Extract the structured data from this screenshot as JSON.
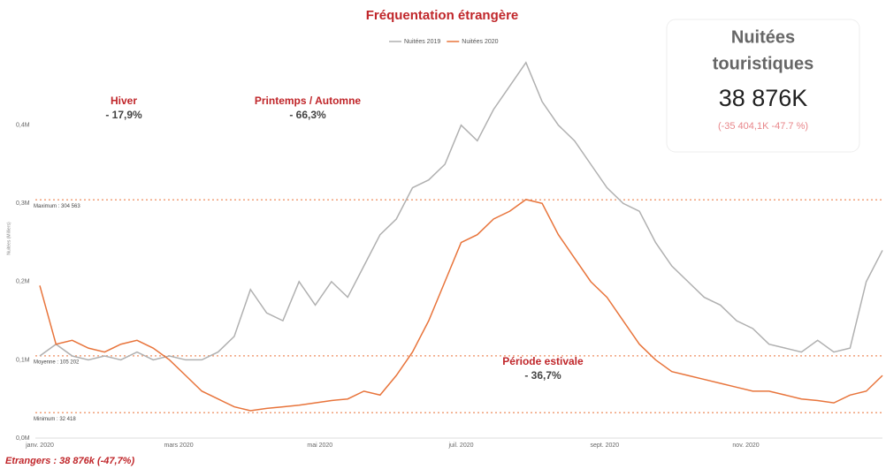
{
  "chart_data": {
    "type": "line",
    "title": "Fréquentation étrangère",
    "y_axis_label": "Nuitées (Milliers)",
    "x": [
      1,
      8,
      15,
      22,
      29,
      36,
      43,
      50,
      57,
      64,
      71,
      78,
      85,
      92,
      99,
      106,
      113,
      120,
      127,
      134,
      141,
      148,
      155,
      162,
      169,
      176,
      183,
      190,
      197,
      204,
      211,
      218,
      225,
      232,
      239,
      246,
      253,
      260,
      267,
      274,
      281,
      288,
      295,
      302,
      309,
      316,
      323,
      330,
      337,
      344,
      351,
      358,
      365
    ],
    "xlim": [
      1,
      365
    ],
    "xticks": [
      {
        "value": 1,
        "label": "janv. 2020"
      },
      {
        "value": 61,
        "label": "mars 2020"
      },
      {
        "value": 122,
        "label": "mai 2020"
      },
      {
        "value": 183,
        "label": "juil. 2020"
      },
      {
        "value": 245,
        "label": "sept. 2020"
      },
      {
        "value": 306,
        "label": "nov. 2020"
      }
    ],
    "ylim": [
      0,
      560000
    ],
    "yticks": [
      {
        "value": 0,
        "label": "0,0M"
      },
      {
        "value": 100000,
        "label": "0,1M"
      },
      {
        "value": 200000,
        "label": "0,2M"
      },
      {
        "value": 300000,
        "label": "0,3M"
      },
      {
        "value": 400000,
        "label": "0,4M"
      }
    ],
    "series": [
      {
        "name": "Nuitées 2019",
        "color": "#b0b0b0",
        "values": [
          105000,
          120000,
          105000,
          100000,
          105000,
          100000,
          110000,
          100000,
          105000,
          100000,
          100000,
          110000,
          130000,
          190000,
          160000,
          150000,
          200000,
          170000,
          200000,
          180000,
          220000,
          260000,
          280000,
          320000,
          330000,
          350000,
          400000,
          380000,
          420000,
          450000,
          480000,
          430000,
          400000,
          380000,
          350000,
          320000,
          300000,
          290000,
          250000,
          220000,
          200000,
          180000,
          170000,
          150000,
          140000,
          120000,
          115000,
          110000,
          125000,
          110000,
          115000,
          200000,
          240000
        ]
      },
      {
        "name": "Nuitées 2020",
        "color": "#e8743b",
        "values": [
          195000,
          120000,
          125000,
          115000,
          110000,
          120000,
          125000,
          115000,
          100000,
          80000,
          60000,
          50000,
          40000,
          35000,
          38000,
          40000,
          42000,
          45000,
          48000,
          50000,
          60000,
          55000,
          80000,
          110000,
          150000,
          200000,
          250000,
          260000,
          280000,
          290000,
          305000,
          300000,
          260000,
          230000,
          200000,
          180000,
          150000,
          120000,
          100000,
          85000,
          80000,
          75000,
          70000,
          65000,
          60000,
          60000,
          55000,
          50000,
          48000,
          45000,
          55000,
          60000,
          80000
        ]
      }
    ],
    "reference_lines": [
      {
        "value": 304563,
        "label": "Maximum : 304 563"
      },
      {
        "value": 105202,
        "label": "Moyenne : 105 202"
      },
      {
        "value": 32418,
        "label": "Minimum : 32 418"
      }
    ],
    "annotations": [
      {
        "title": "Hiver",
        "text": "- 17,9%"
      },
      {
        "title": "Printemps / Automne",
        "text": "- 66,3%"
      },
      {
        "title": "Période estivale",
        "text": "- 36,7%"
      }
    ],
    "kpi": {
      "title_line1": "Nuitées",
      "title_line2": "touristiques",
      "value": "38 876K",
      "delta": "(-35 404,1K -47.7 %)"
    },
    "footer": "Etrangers : 38 876k (-47,7%)"
  }
}
